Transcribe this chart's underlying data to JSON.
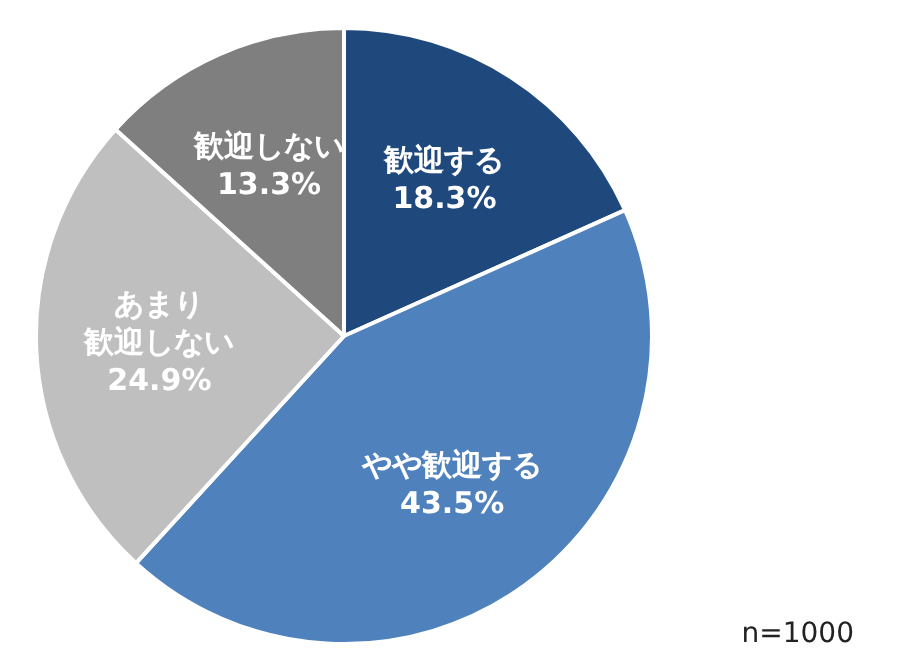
{
  "chart_data": {
    "type": "pie",
    "categories": [
      "歓迎する",
      "やや歓迎する",
      "あまり歓迎しない",
      "歓迎しない"
    ],
    "values": [
      18.3,
      43.5,
      24.9,
      13.3
    ],
    "value_labels": [
      "18.3%",
      "43.5%",
      "24.9%",
      "13.3%"
    ],
    "colors": [
      "#1f497d",
      "#4f81bd",
      "#bfbfbf",
      "#7f7f7f"
    ],
    "legend": false,
    "annotations": [
      "n=1000"
    ]
  }
}
